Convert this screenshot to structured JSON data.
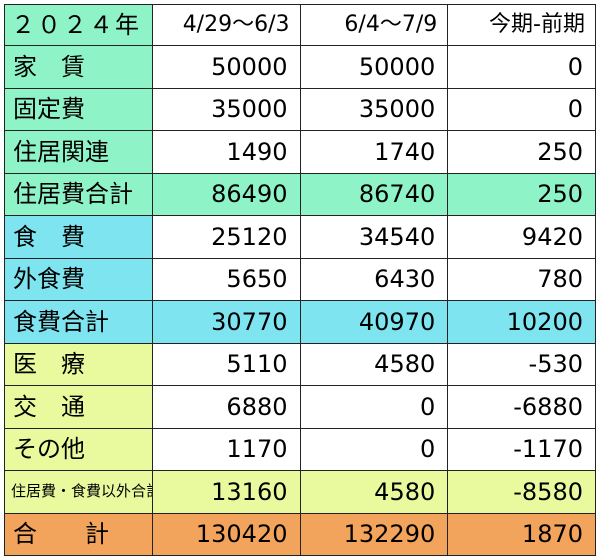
{
  "header": {
    "year": "２０２４年",
    "col1": "4/29〜6/3",
    "col2": "6/4〜7/9",
    "col3": "今期-前期"
  },
  "rows": [
    {
      "label": "家　賃",
      "v1": "50000",
      "v2": "50000",
      "v3": "0"
    },
    {
      "label": "固定費",
      "v1": "35000",
      "v2": "35000",
      "v3": "0"
    },
    {
      "label": "住居関連",
      "v1": "1490",
      "v2": "1740",
      "v3": "250"
    },
    {
      "label": "住居費合計",
      "v1": "86490",
      "v2": "86740",
      "v3": "250"
    },
    {
      "label": "食　費",
      "v1": "25120",
      "v2": "34540",
      "v3": "9420"
    },
    {
      "label": "外食費",
      "v1": "5650",
      "v2": "6430",
      "v3": "780"
    },
    {
      "label": "食費合計",
      "v1": "30770",
      "v2": "40970",
      "v3": "10200"
    },
    {
      "label": "医　療",
      "v1": "5110",
      "v2": "4580",
      "v3": "-530"
    },
    {
      "label": "交　通",
      "v1": "6880",
      "v2": "0",
      "v3": "-6880"
    },
    {
      "label": "その他",
      "v1": "1170",
      "v2": "0",
      "v3": "-1170"
    },
    {
      "label": "住居費・食費以外合計",
      "v1": "13160",
      "v2": "4580",
      "v3": "-8580"
    },
    {
      "label": "合　　計",
      "v1": "130420",
      "v2": "132290",
      "v3": "1870"
    }
  ],
  "colors": {
    "housing": "#8ff3c8",
    "food": "#7ee4f0",
    "other": "#e9fa9e",
    "total": "#f2a35c"
  }
}
